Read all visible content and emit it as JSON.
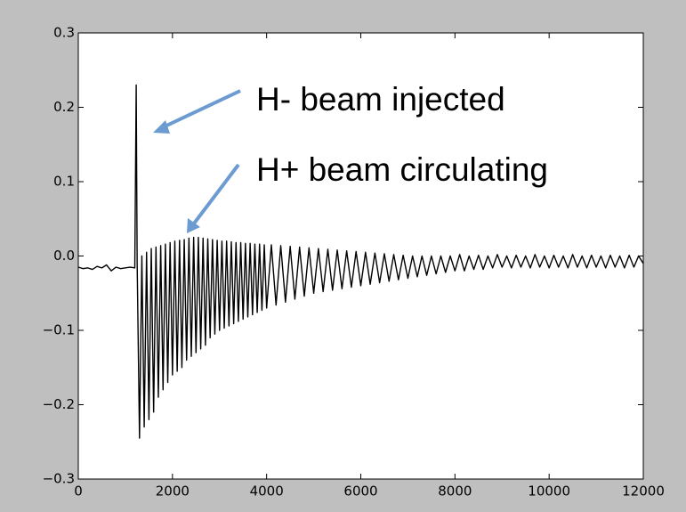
{
  "chart_data": {
    "type": "line",
    "annotations": [
      {
        "text": "H- beam injected"
      },
      {
        "text": "H+ beam circulating"
      }
    ],
    "xlim": [
      0,
      12000
    ],
    "xticks": [
      0,
      2000,
      4000,
      6000,
      8000,
      10000,
      12000
    ],
    "ylim": [
      -0.3,
      0.3
    ],
    "yticks": [
      {
        "value": -0.3,
        "label": "−0.3"
      },
      {
        "value": -0.2,
        "label": "−0.2"
      },
      {
        "value": -0.1,
        "label": "−0.1"
      },
      {
        "value": 0,
        "label": "0.0"
      },
      0.1,
      0.2,
      0.3
    ],
    "color": "#000000",
    "x": [
      0,
      100,
      200,
      300,
      400,
      500,
      600,
      700,
      800,
      900,
      1000,
      1100,
      1200,
      1230,
      1250,
      1300,
      1350,
      1400,
      1450,
      1500,
      1550,
      1600,
      1650,
      1700,
      1750,
      1800,
      1850,
      1900,
      1950,
      2000,
      2050,
      2100,
      2150,
      2200,
      2250,
      2300,
      2350,
      2400,
      2450,
      2500,
      2550,
      2600,
      2650,
      2700,
      2750,
      2800,
      2850,
      2900,
      2950,
      3000,
      3050,
      3100,
      3150,
      3200,
      3250,
      3300,
      3350,
      3400,
      3450,
      3500,
      3550,
      3600,
      3650,
      3700,
      3750,
      3800,
      3850,
      3900,
      3950,
      4000,
      4100,
      4200,
      4300,
      4400,
      4500,
      4600,
      4700,
      4800,
      4900,
      5000,
      5100,
      5200,
      5300,
      5400,
      5500,
      5600,
      5700,
      5800,
      5900,
      6000,
      6100,
      6200,
      6300,
      6400,
      6500,
      6600,
      6700,
      6800,
      6900,
      7000,
      7100,
      7200,
      7300,
      7400,
      7500,
      7600,
      7700,
      7800,
      7900,
      8000,
      8100,
      8200,
      8300,
      8400,
      8500,
      8600,
      8700,
      8800,
      8900,
      9000,
      9100,
      9200,
      9300,
      9400,
      9500,
      9600,
      9700,
      9800,
      9900,
      10000,
      10100,
      10200,
      10300,
      10400,
      10500,
      10600,
      10700,
      10800,
      10900,
      11000,
      11100,
      11200,
      11300,
      11400,
      11500,
      11600,
      11700,
      11800,
      11900,
      12000
    ],
    "values": [
      -0.015,
      -0.017,
      -0.016,
      -0.018,
      -0.014,
      -0.016,
      -0.012,
      -0.02,
      -0.015,
      -0.017,
      -0.016,
      -0.015,
      -0.016,
      0.23,
      -0.01,
      -0.245,
      0.0,
      -0.23,
      0.005,
      -0.22,
      0.01,
      -0.21,
      0.012,
      -0.19,
      0.014,
      -0.18,
      0.016,
      -0.17,
      0.018,
      -0.16,
      0.02,
      -0.155,
      0.021,
      -0.15,
      0.022,
      -0.14,
      0.024,
      -0.135,
      0.025,
      -0.13,
      0.025,
      -0.125,
      0.024,
      -0.12,
      0.023,
      -0.11,
      0.022,
      -0.105,
      0.021,
      -0.1,
      0.02,
      -0.097,
      0.02,
      -0.094,
      0.019,
      -0.091,
      0.018,
      -0.088,
      0.018,
      -0.085,
      0.017,
      -0.082,
      0.017,
      -0.079,
      0.016,
      -0.076,
      0.016,
      -0.073,
      0.015,
      -0.07,
      0.015,
      -0.066,
      0.014,
      -0.062,
      0.013,
      -0.058,
      0.012,
      -0.054,
      0.011,
      -0.05,
      0.01,
      -0.048,
      0.009,
      -0.046,
      0.008,
      -0.044,
      0.007,
      -0.042,
      0.006,
      -0.04,
      0.005,
      -0.038,
      0.004,
      -0.036,
      0.003,
      -0.034,
      0.002,
      -0.032,
      0.001,
      -0.03,
      0.0,
      -0.028,
      0.0,
      -0.026,
      0.0,
      -0.024,
      0.0,
      -0.022,
      0.0,
      -0.02,
      0.002,
      -0.02,
      0.0,
      -0.018,
      0.001,
      -0.018,
      0.0,
      -0.016,
      0.002,
      -0.015,
      0.0,
      -0.016,
      0.001,
      -0.015,
      0.0,
      -0.016,
      0.002,
      -0.015,
      0.0,
      -0.016,
      0.001,
      -0.015,
      0.0,
      -0.016,
      0.002,
      -0.015,
      0.0,
      -0.016,
      0.001,
      -0.015,
      0.0,
      -0.016,
      0.001,
      -0.015,
      0.0,
      -0.016,
      0.001,
      -0.015,
      0.0,
      -0.01
    ]
  }
}
